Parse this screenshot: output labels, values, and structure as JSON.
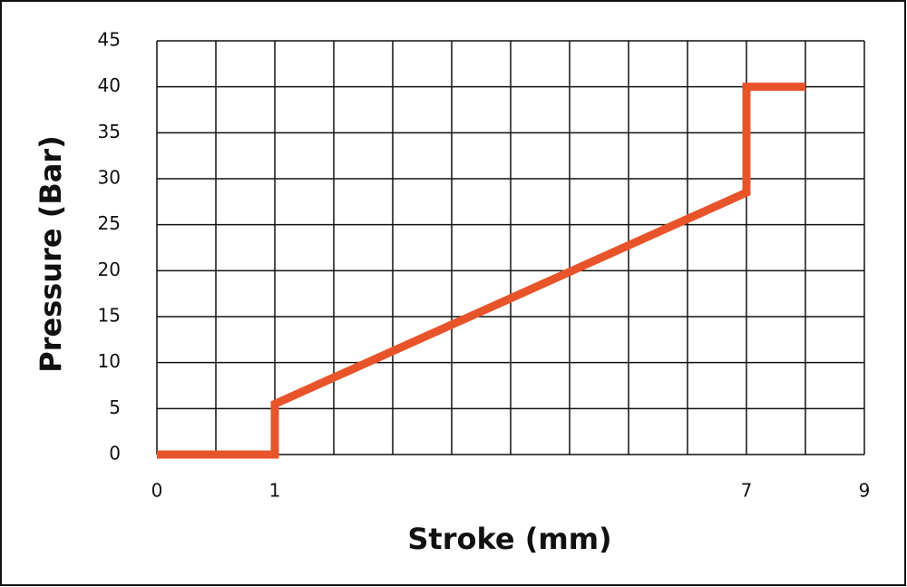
{
  "chart_data": {
    "type": "line",
    "x_label": "Stroke (mm)",
    "y_label": "Pressure (Bar)",
    "x": [
      0,
      1,
      1,
      7,
      7,
      8
    ],
    "series": [
      {
        "color": "#e8542a",
        "values": [
          0,
          0,
          5.5,
          28.5,
          40,
          40
        ]
      }
    ],
    "xlim": [
      0,
      9
    ],
    "xticks": [
      0,
      1,
      7,
      9
    ],
    "ylim": [
      0,
      45
    ],
    "yticks": [
      0,
      5,
      10,
      15,
      20,
      25,
      30,
      35,
      40,
      45
    ],
    "grid": true
  }
}
